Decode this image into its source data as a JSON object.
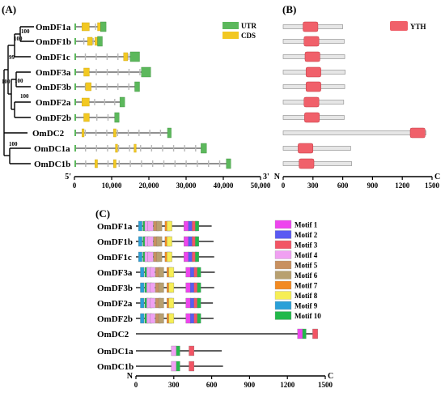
{
  "panels": {
    "a": "(A)",
    "b": "(B)",
    "c": "(C)"
  },
  "colors": {
    "utr": "#5cb85c",
    "cds": "#f2c822",
    "yth": "#f0606a",
    "box": "#e6e6e6",
    "motifs": [
      "#ee44ee",
      "#5a5af2",
      "#f25565",
      "#f0a0f2",
      "#c89060",
      "#b8a070",
      "#f28a22",
      "#f6ee55",
      "#2aa0d8",
      "#22b84a"
    ]
  },
  "tree": {
    "bootstrap": [
      "100",
      "100",
      "100",
      "99",
      "100",
      "100",
      "100"
    ],
    "genes": [
      "OmDF1a",
      "OmDF1b",
      "OmDF1c",
      "OmDF3a",
      "OmDF3b",
      "OmDF2a",
      "OmDF2b",
      "OmDC2",
      "OmDC1a",
      "OmDC1b"
    ]
  },
  "gene_structure": {
    "legend": [
      "UTR",
      "CDS"
    ],
    "axis_ticks": [
      "0",
      "10,000",
      "20,000",
      "30,000",
      "40,000",
      "50,000"
    ],
    "axis_ends": [
      "5'",
      "3'"
    ],
    "xlim": [
      0,
      50000
    ],
    "rows": [
      {
        "length": 8500,
        "utr": [
          [
            7000,
            8500
          ]
        ],
        "cds": [
          [
            2000,
            4000
          ],
          [
            6200,
            7000
          ]
        ]
      },
      {
        "length": 7500,
        "utr": [
          [
            6200,
            7500
          ]
        ],
        "cds": [
          [
            3500,
            4800
          ],
          [
            5500,
            6200
          ]
        ]
      },
      {
        "length": 17500,
        "utr": [
          [
            15000,
            17500
          ]
        ],
        "cds": [
          [
            13200,
            14300
          ]
        ]
      },
      {
        "length": 20500,
        "utr": [
          [
            18000,
            20500
          ]
        ],
        "cds": [
          [
            2500,
            4000
          ]
        ]
      },
      {
        "length": 17500,
        "utr": [
          [
            16200,
            17500
          ]
        ],
        "cds": [
          [
            3000,
            4500
          ]
        ]
      },
      {
        "length": 13500,
        "utr": [
          [
            12200,
            13500
          ]
        ],
        "cds": [
          [
            2000,
            4000
          ]
        ]
      },
      {
        "length": 12000,
        "utr": [
          [
            10800,
            12000
          ]
        ],
        "cds": [
          [
            2500,
            4000
          ]
        ]
      },
      {
        "length": 26000,
        "utr": [
          [
            25000,
            26000
          ]
        ],
        "cds": [
          [
            2000,
            2600
          ],
          [
            10500,
            11200
          ]
        ]
      },
      {
        "length": 35500,
        "utr": [
          [
            34000,
            35500
          ]
        ],
        "cds": [
          [
            11000,
            11600
          ],
          [
            16000,
            16600
          ]
        ]
      },
      {
        "length": 42000,
        "utr": [
          [
            40800,
            42000
          ]
        ],
        "cds": [
          [
            5500,
            6200
          ],
          [
            10500,
            11200
          ]
        ]
      }
    ]
  },
  "domains": {
    "legend": "YTH",
    "axis_ticks": [
      "0",
      "300",
      "600",
      "900",
      "1200",
      "1500"
    ],
    "axis_ends": [
      "N",
      "C"
    ],
    "xlim": [
      0,
      1500
    ],
    "rows": [
      {
        "length": 600,
        "yth": [
          200,
          350
        ]
      },
      {
        "length": 615,
        "yth": [
          210,
          360
        ]
      },
      {
        "length": 620,
        "yth": [
          220,
          370
        ]
      },
      {
        "length": 625,
        "yth": [
          230,
          380
        ]
      },
      {
        "length": 620,
        "yth": [
          230,
          380
        ]
      },
      {
        "length": 610,
        "yth": [
          210,
          360
        ]
      },
      {
        "length": 615,
        "yth": [
          215,
          365
        ]
      },
      {
        "length": 1440,
        "yth": [
          1280,
          1430
        ]
      },
      {
        "length": 680,
        "yth": [
          150,
          300
        ]
      },
      {
        "length": 690,
        "yth": [
          160,
          310
        ]
      }
    ]
  },
  "motifs": {
    "names": [
      "Motif 1",
      "Motif 2",
      "Motif 3",
      "Motif 4",
      "Motif 5",
      "Motif 6",
      "Motif 7",
      "Motif 8",
      "Motif 9",
      "Motif 10"
    ],
    "axis_ticks": [
      "0",
      "300",
      "600",
      "900",
      "1200",
      "1500"
    ],
    "axis_ends": [
      "N",
      "C"
    ],
    "xlim": [
      0,
      1500
    ],
    "rows": [
      {
        "length": 600
      },
      {
        "length": 615
      },
      {
        "length": 620
      },
      {
        "length": 625
      },
      {
        "length": 620
      },
      {
        "length": 610
      },
      {
        "length": 615
      },
      {
        "length": 1440
      },
      {
        "length": 680
      },
      {
        "length": 690
      }
    ]
  }
}
